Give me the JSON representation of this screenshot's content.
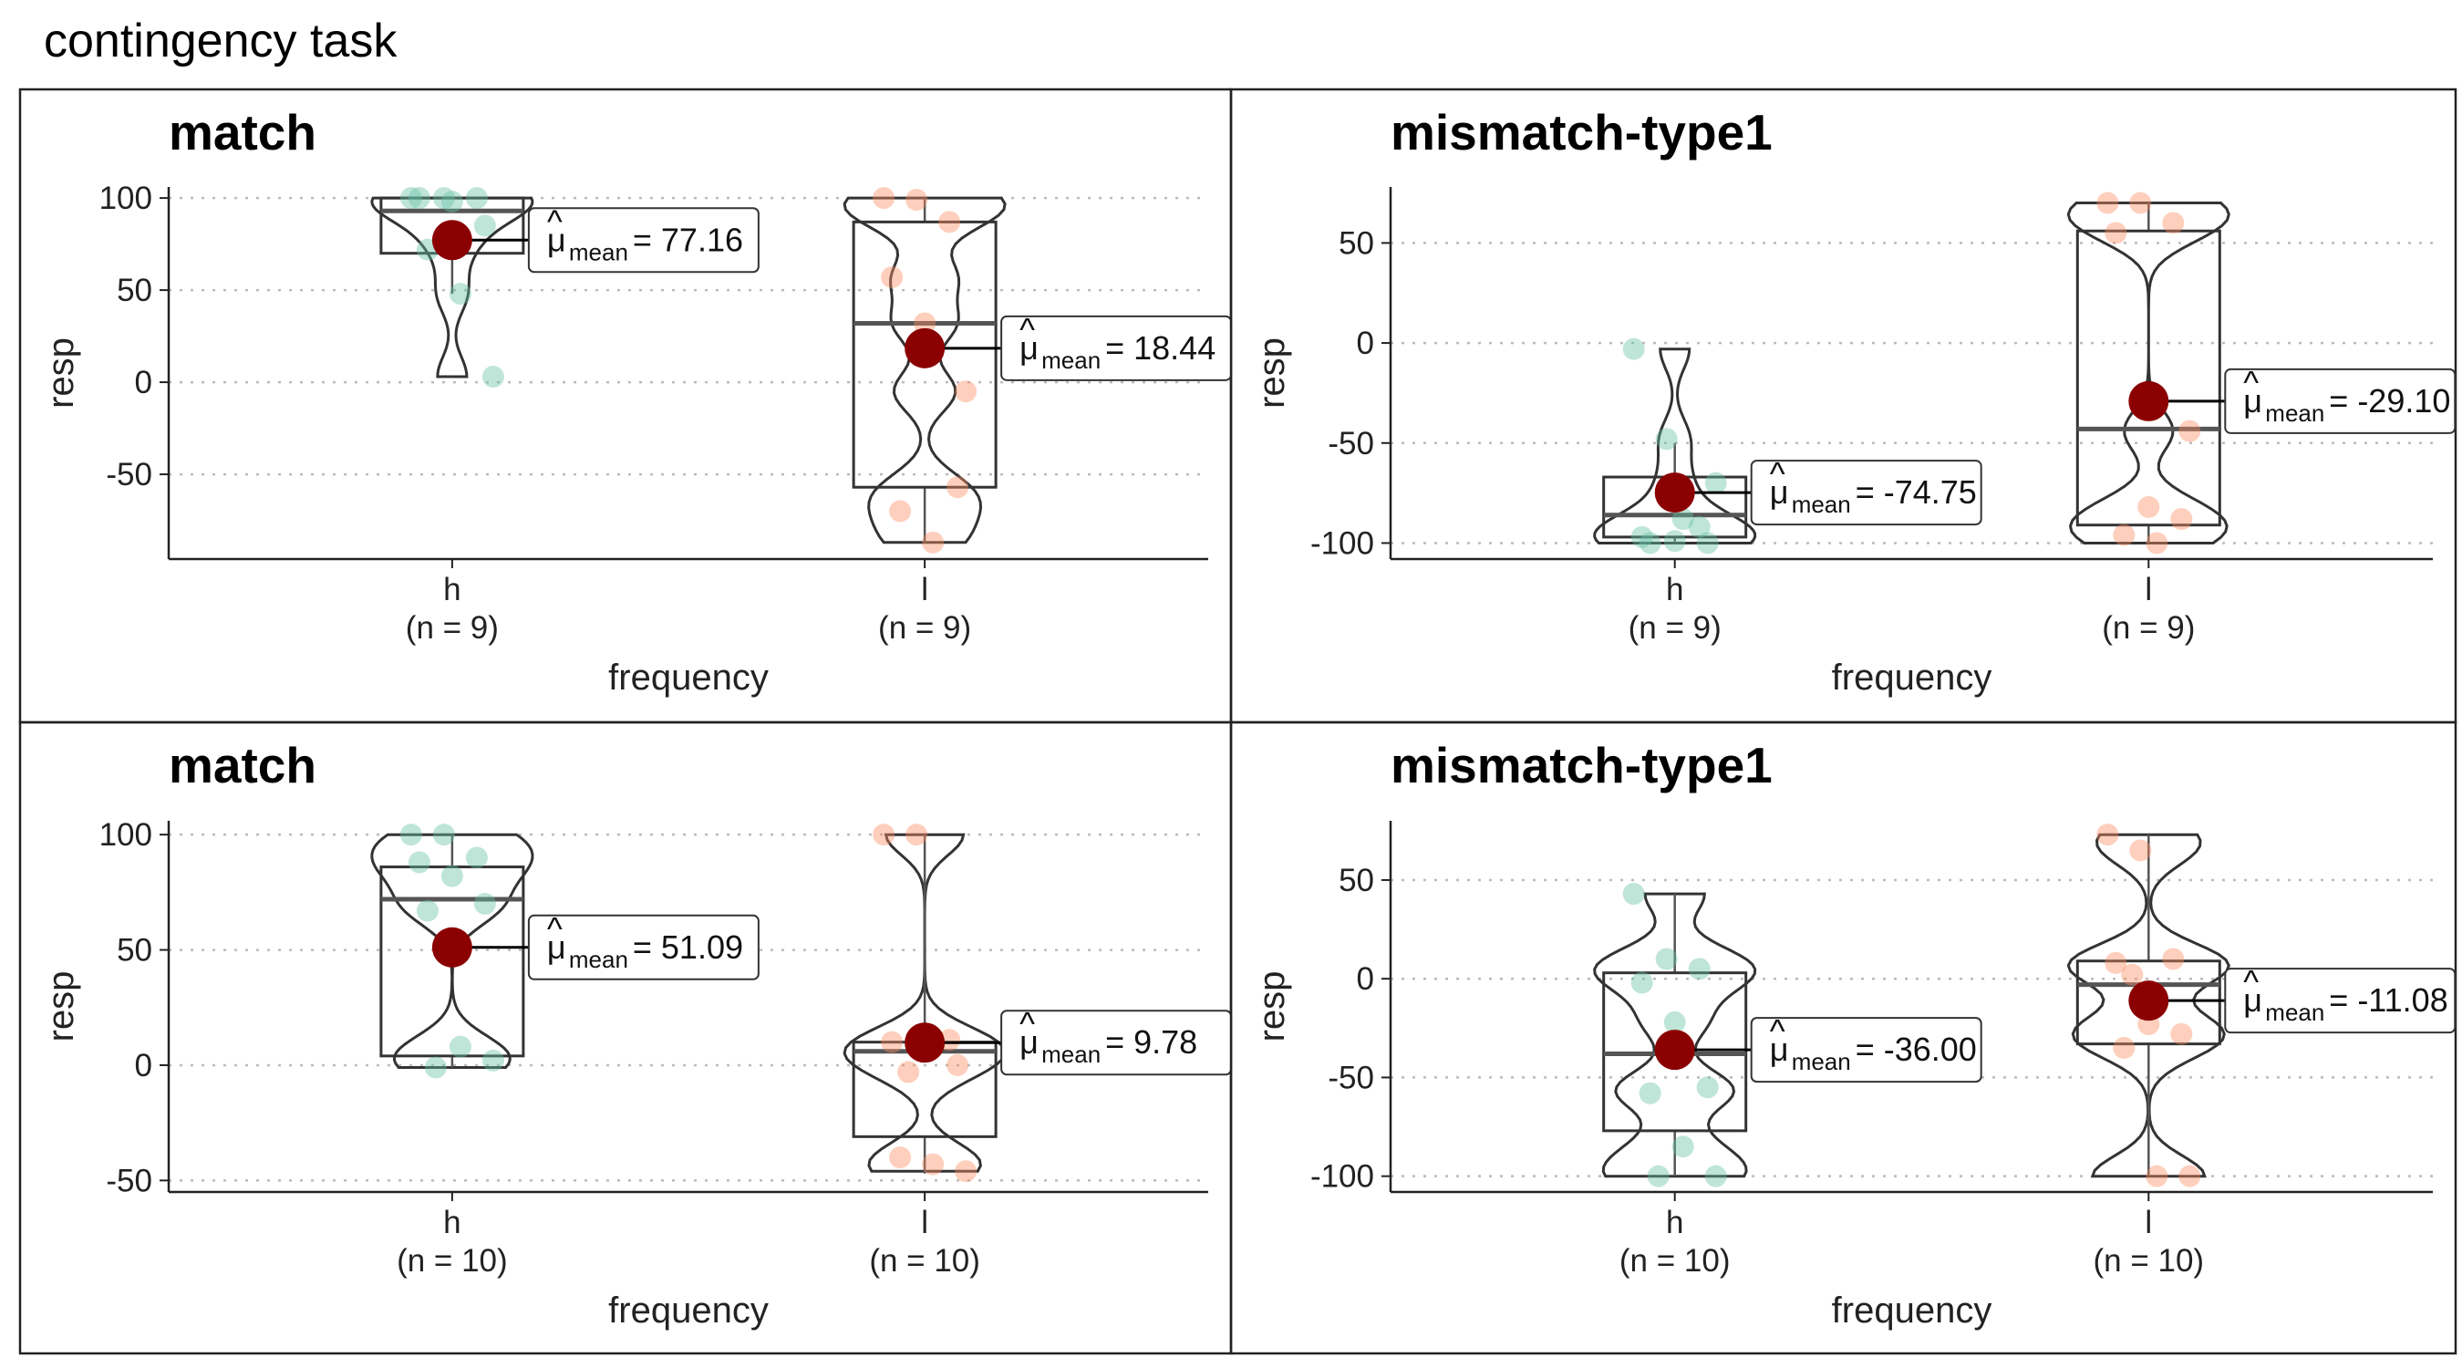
{
  "title": "contingency task",
  "colors": {
    "h": "#66c2a5",
    "l": "#fc8d62",
    "mean": "#8b0000",
    "outline": "#333333",
    "grid": "#bbbbbb"
  },
  "chart_data": [
    {
      "type": "violin-box-scatter",
      "title": "match",
      "xlabel": "frequency",
      "ylabel": "resp",
      "ylim": [
        -96,
        106
      ],
      "yticks": [
        100,
        50,
        0,
        -50
      ],
      "grid": "dotted-horizontal",
      "groups": [
        {
          "name": "h",
          "n_label": "(n = 9)",
          "mean": 77.16,
          "mean_label": "= 77.16",
          "box": {
            "min": 48,
            "q1": 70,
            "median": 93,
            "q3": 100,
            "max": 100
          },
          "points": [
            100,
            100,
            100,
            100,
            98,
            85,
            72,
            48,
            3
          ]
        },
        {
          "name": "l",
          "n_label": "(n = 9)",
          "mean": 18.44,
          "mean_label": "= 18.44",
          "box": {
            "min": -87,
            "q1": -57,
            "median": 32,
            "q3": 87,
            "max": 100
          },
          "points": [
            100,
            99,
            87,
            57,
            32,
            -57,
            -70,
            -87,
            -5
          ]
        }
      ]
    },
    {
      "type": "violin-box-scatter",
      "title": "mismatch-type1",
      "xlabel": "frequency",
      "ylabel": "resp",
      "ylim": [
        -108,
        78
      ],
      "yticks": [
        50,
        0,
        -50,
        -100
      ],
      "grid": "dotted-horizontal",
      "groups": [
        {
          "name": "h",
          "n_label": "(n = 9)",
          "mean": -74.75,
          "mean_label": "= -74.75",
          "box": {
            "min": -100,
            "q1": -97,
            "median": -86,
            "q3": -67,
            "max": -50
          },
          "points": [
            -3,
            -48,
            -92,
            -97,
            -99,
            -100,
            -100,
            -88,
            -70
          ]
        },
        {
          "name": "l",
          "n_label": "(n = 9)",
          "mean": -29.1,
          "mean_label": "= -29.10",
          "box": {
            "min": -100,
            "q1": -91,
            "median": -43,
            "q3": 56,
            "max": 70
          },
          "points": [
            70,
            70,
            60,
            55,
            -82,
            -88,
            -96,
            -100,
            -44
          ]
        }
      ]
    },
    {
      "type": "violin-box-scatter",
      "title": "match",
      "xlabel": "frequency",
      "ylabel": "resp",
      "ylim": [
        -55,
        106
      ],
      "yticks": [
        100,
        50,
        0,
        -50
      ],
      "grid": "dotted-horizontal",
      "groups": [
        {
          "name": "h",
          "n_label": "(n = 10)",
          "mean": 51.09,
          "mean_label": "= 51.09",
          "box": {
            "min": -1,
            "q1": 4,
            "median": 72,
            "q3": 86,
            "max": 100
          },
          "points": [
            100,
            100,
            90,
            88,
            82,
            70,
            67,
            8,
            2,
            -1
          ]
        },
        {
          "name": "l",
          "n_label": "(n = 10)",
          "mean": 9.78,
          "mean_label": "= 9.78",
          "box": {
            "min": -47,
            "q1": -31,
            "median": 6,
            "q3": 10,
            "max": 100
          },
          "points": [
            100,
            100,
            11,
            10,
            7,
            0,
            -40,
            -43,
            -46,
            -3
          ]
        }
      ]
    },
    {
      "type": "violin-box-scatter",
      "title": "mismatch-type1",
      "xlabel": "frequency",
      "ylabel": "resp",
      "ylim": [
        -108,
        80
      ],
      "yticks": [
        50,
        0,
        -50,
        -100
      ],
      "grid": "dotted-horizontal",
      "groups": [
        {
          "name": "h",
          "n_label": "(n = 10)",
          "mean": -36.0,
          "mean_label": "= -36.00",
          "box": {
            "min": -100,
            "q1": -77,
            "median": -38,
            "q3": 3,
            "max": 43
          },
          "points": [
            43,
            10,
            5,
            -2,
            -22,
            -55,
            -58,
            -85,
            -100,
            -100
          ]
        },
        {
          "name": "l",
          "n_label": "(n = 10)",
          "mean": -11.08,
          "mean_label": "= -11.08",
          "box": {
            "min": -100,
            "q1": -33,
            "median": -3,
            "q3": 9,
            "max": 73
          },
          "points": [
            73,
            65,
            10,
            8,
            -23,
            -28,
            -35,
            -100,
            -100,
            2
          ]
        }
      ]
    }
  ]
}
